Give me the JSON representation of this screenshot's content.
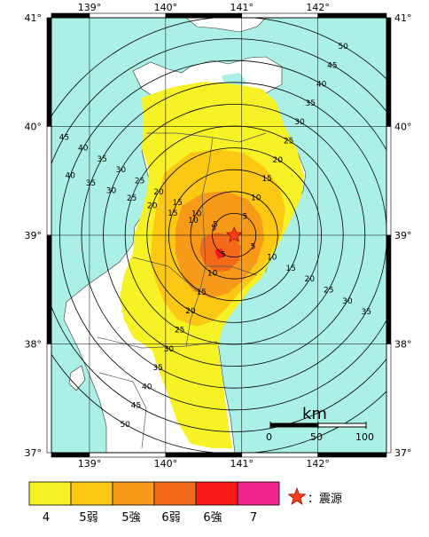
{
  "map": {
    "longitude_ticks": [
      "139°",
      "140°",
      "141°",
      "142°"
    ],
    "latitude_ticks": [
      "41°",
      "40°",
      "39°",
      "38°",
      "37°"
    ],
    "epicenter": {
      "lon": 140.9,
      "lat": 39.0
    },
    "distance_rings_km": [
      5,
      10,
      15,
      20,
      25,
      30,
      35,
      40,
      45,
      50
    ],
    "sea_color": "#aaf0e6",
    "land_color": "#ffffff",
    "grid_color": "#000000"
  },
  "scale_bar": {
    "title": "km",
    "ticks": [
      "0",
      "50",
      "100"
    ]
  },
  "legend": {
    "items": [
      {
        "label": "4",
        "color": "#f7f225"
      },
      {
        "label": "5弱",
        "color": "#fcc814"
      },
      {
        "label": "5強",
        "color": "#f79a1a"
      },
      {
        "label": "6弱",
        "color": "#f26a1a"
      },
      {
        "label": "6強",
        "color": "#fa1a1a"
      },
      {
        "label": "7",
        "color": "#f0288c"
      }
    ],
    "epicenter_label": "：震源",
    "epicenter_icon": "star-icon",
    "epicenter_color": "#ff3c14"
  }
}
